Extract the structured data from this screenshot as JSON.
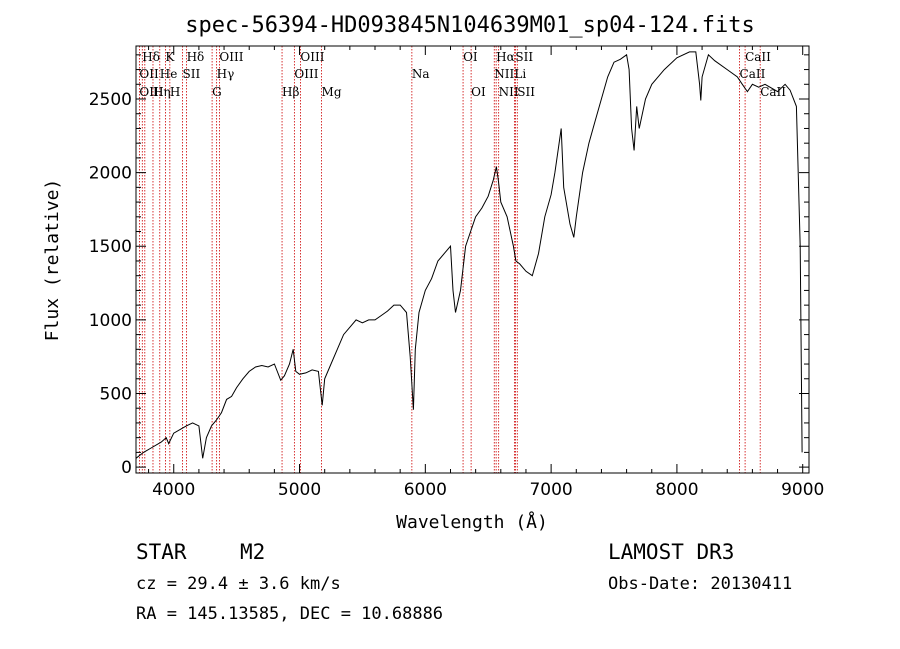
{
  "chart_data": {
    "type": "line",
    "title": "spec-56394-HD093845N104639M01_sp04-124.fits",
    "xlabel": "Wavelength (Å)",
    "ylabel": "Flux (relative)",
    "xlim": [
      3700,
      9050
    ],
    "ylim": [
      -40,
      2860
    ],
    "x_ticks": [
      4000,
      5000,
      6000,
      7000,
      8000,
      9000
    ],
    "y_ticks": [
      0,
      500,
      1000,
      1500,
      2000,
      2500
    ],
    "series": [
      {
        "name": "flux",
        "points": [
          [
            3700,
            60
          ],
          [
            3760,
            100
          ],
          [
            3820,
            130
          ],
          [
            3900,
            170
          ],
          [
            3940,
            200
          ],
          [
            3960,
            160
          ],
          [
            4000,
            230
          ],
          [
            4060,
            260
          ],
          [
            4100,
            280
          ],
          [
            4150,
            300
          ],
          [
            4200,
            280
          ],
          [
            4230,
            60
          ],
          [
            4260,
            200
          ],
          [
            4300,
            280
          ],
          [
            4340,
            320
          ],
          [
            4380,
            370
          ],
          [
            4420,
            460
          ],
          [
            4460,
            480
          ],
          [
            4500,
            540
          ],
          [
            4550,
            600
          ],
          [
            4600,
            650
          ],
          [
            4650,
            680
          ],
          [
            4700,
            690
          ],
          [
            4750,
            680
          ],
          [
            4800,
            700
          ],
          [
            4850,
            590
          ],
          [
            4880,
            620
          ],
          [
            4920,
            700
          ],
          [
            4950,
            800
          ],
          [
            4970,
            650
          ],
          [
            5000,
            630
          ],
          [
            5050,
            640
          ],
          [
            5100,
            660
          ],
          [
            5150,
            650
          ],
          [
            5180,
            420
          ],
          [
            5200,
            600
          ],
          [
            5250,
            700
          ],
          [
            5300,
            800
          ],
          [
            5350,
            900
          ],
          [
            5400,
            950
          ],
          [
            5450,
            1000
          ],
          [
            5500,
            980
          ],
          [
            5550,
            1000
          ],
          [
            5600,
            1000
          ],
          [
            5650,
            1030
          ],
          [
            5700,
            1060
          ],
          [
            5750,
            1100
          ],
          [
            5800,
            1100
          ],
          [
            5850,
            1050
          ],
          [
            5880,
            750
          ],
          [
            5905,
            390
          ],
          [
            5920,
            800
          ],
          [
            5950,
            1050
          ],
          [
            6000,
            1200
          ],
          [
            6050,
            1280
          ],
          [
            6100,
            1400
          ],
          [
            6150,
            1450
          ],
          [
            6200,
            1500
          ],
          [
            6220,
            1200
          ],
          [
            6240,
            1050
          ],
          [
            6280,
            1200
          ],
          [
            6320,
            1500
          ],
          [
            6360,
            1600
          ],
          [
            6400,
            1700
          ],
          [
            6450,
            1760
          ],
          [
            6500,
            1840
          ],
          [
            6540,
            1950
          ],
          [
            6565,
            2040
          ],
          [
            6580,
            1950
          ],
          [
            6600,
            1800
          ],
          [
            6650,
            1700
          ],
          [
            6700,
            1500
          ],
          [
            6720,
            1400
          ],
          [
            6750,
            1380
          ],
          [
            6800,
            1330
          ],
          [
            6850,
            1300
          ],
          [
            6900,
            1450
          ],
          [
            6950,
            1700
          ],
          [
            7000,
            1850
          ],
          [
            7030,
            2000
          ],
          [
            7060,
            2180
          ],
          [
            7080,
            2300
          ],
          [
            7100,
            1900
          ],
          [
            7150,
            1650
          ],
          [
            7180,
            1560
          ],
          [
            7200,
            1700
          ],
          [
            7250,
            2000
          ],
          [
            7300,
            2200
          ],
          [
            7350,
            2350
          ],
          [
            7400,
            2500
          ],
          [
            7450,
            2650
          ],
          [
            7500,
            2750
          ],
          [
            7550,
            2770
          ],
          [
            7600,
            2800
          ],
          [
            7620,
            2700
          ],
          [
            7640,
            2300
          ],
          [
            7660,
            2150
          ],
          [
            7680,
            2450
          ],
          [
            7700,
            2300
          ],
          [
            7750,
            2500
          ],
          [
            7800,
            2600
          ],
          [
            7900,
            2700
          ],
          [
            8000,
            2780
          ],
          [
            8100,
            2820
          ],
          [
            8150,
            2820
          ],
          [
            8180,
            2600
          ],
          [
            8190,
            2490
          ],
          [
            8200,
            2650
          ],
          [
            8250,
            2800
          ],
          [
            8300,
            2760
          ],
          [
            8400,
            2700
          ],
          [
            8480,
            2650
          ],
          [
            8520,
            2600
          ],
          [
            8560,
            2550
          ],
          [
            8600,
            2600
          ],
          [
            8650,
            2580
          ],
          [
            8700,
            2600
          ],
          [
            8800,
            2550
          ],
          [
            8860,
            2600
          ],
          [
            8900,
            2560
          ],
          [
            8950,
            2450
          ],
          [
            8980,
            1500
          ],
          [
            8995,
            100
          ]
        ]
      }
    ],
    "line_markers": [
      {
        "label": "Hδ",
        "wavelength": 3750,
        "row": 1
      },
      {
        "label": "OII",
        "wavelength": 3727,
        "row": 2
      },
      {
        "label": "OIII",
        "wavelength": 3727,
        "row": 3
      },
      {
        "label": "K",
        "wavelength": 3934,
        "row": 1
      },
      {
        "label": "He",
        "wavelength": 3889,
        "row": 2
      },
      {
        "label": "Hη",
        "wavelength": 3835,
        "row": 3
      },
      {
        "label": "SII",
        "wavelength": 4070,
        "row": 2
      },
      {
        "label": "H",
        "wavelength": 3969,
        "row": 3
      },
      {
        "label": "Hδ",
        "wavelength": 4102,
        "row": 1
      },
      {
        "label": "OIII",
        "wavelength": 4363,
        "row": 1
      },
      {
        "label": "Hγ",
        "wavelength": 4341,
        "row": 2
      },
      {
        "label": "G",
        "wavelength": 4305,
        "row": 3
      },
      {
        "label": "OIII",
        "wavelength": 5007,
        "row": 1
      },
      {
        "label": "OIII",
        "wavelength": 4959,
        "row": 2
      },
      {
        "label": "Hβ",
        "wavelength": 4861,
        "row": 3
      },
      {
        "label": "Mg",
        "wavelength": 5175,
        "row": 3
      },
      {
        "label": "Na",
        "wavelength": 5893,
        "row": 2
      },
      {
        "label": "OI",
        "wavelength": 6300,
        "row": 1
      },
      {
        "label": "OI",
        "wavelength": 6364,
        "row": 3
      },
      {
        "label": "Hα",
        "wavelength": 6563,
        "row": 1
      },
      {
        "label": "SII",
        "wavelength": 6716,
        "row": 1
      },
      {
        "label": "NII",
        "wavelength": 6548,
        "row": 2
      },
      {
        "label": "Li",
        "wavelength": 6708,
        "row": 2
      },
      {
        "label": "NII",
        "wavelength": 6583,
        "row": 3
      },
      {
        "label": "SII",
        "wavelength": 6731,
        "row": 3
      },
      {
        "label": "CaII",
        "wavelength": 8542,
        "row": 1
      },
      {
        "label": "CaII",
        "wavelength": 8498,
        "row": 2
      },
      {
        "label": "CaII",
        "wavelength": 8662,
        "row": 3
      }
    ],
    "marker_lines": [
      3727,
      3750,
      3770,
      3835,
      3889,
      3934,
      3969,
      4070,
      4102,
      4305,
      4341,
      4363,
      4861,
      4959,
      5007,
      5175,
      5893,
      6300,
      6364,
      6548,
      6563,
      6583,
      6708,
      6716,
      6731,
      8498,
      8542,
      8662
    ]
  },
  "footer": {
    "class_label": "STAR",
    "subclass": "M2",
    "cz": "cz = 29.4 ± 3.6 km/s",
    "coords": "RA = 145.13585, DEC =  10.68886",
    "survey": "LAMOST DR3",
    "obs_date": "Obs-Date: 20130411"
  },
  "colors": {
    "line": "#000000",
    "marker": "#cc0000"
  }
}
